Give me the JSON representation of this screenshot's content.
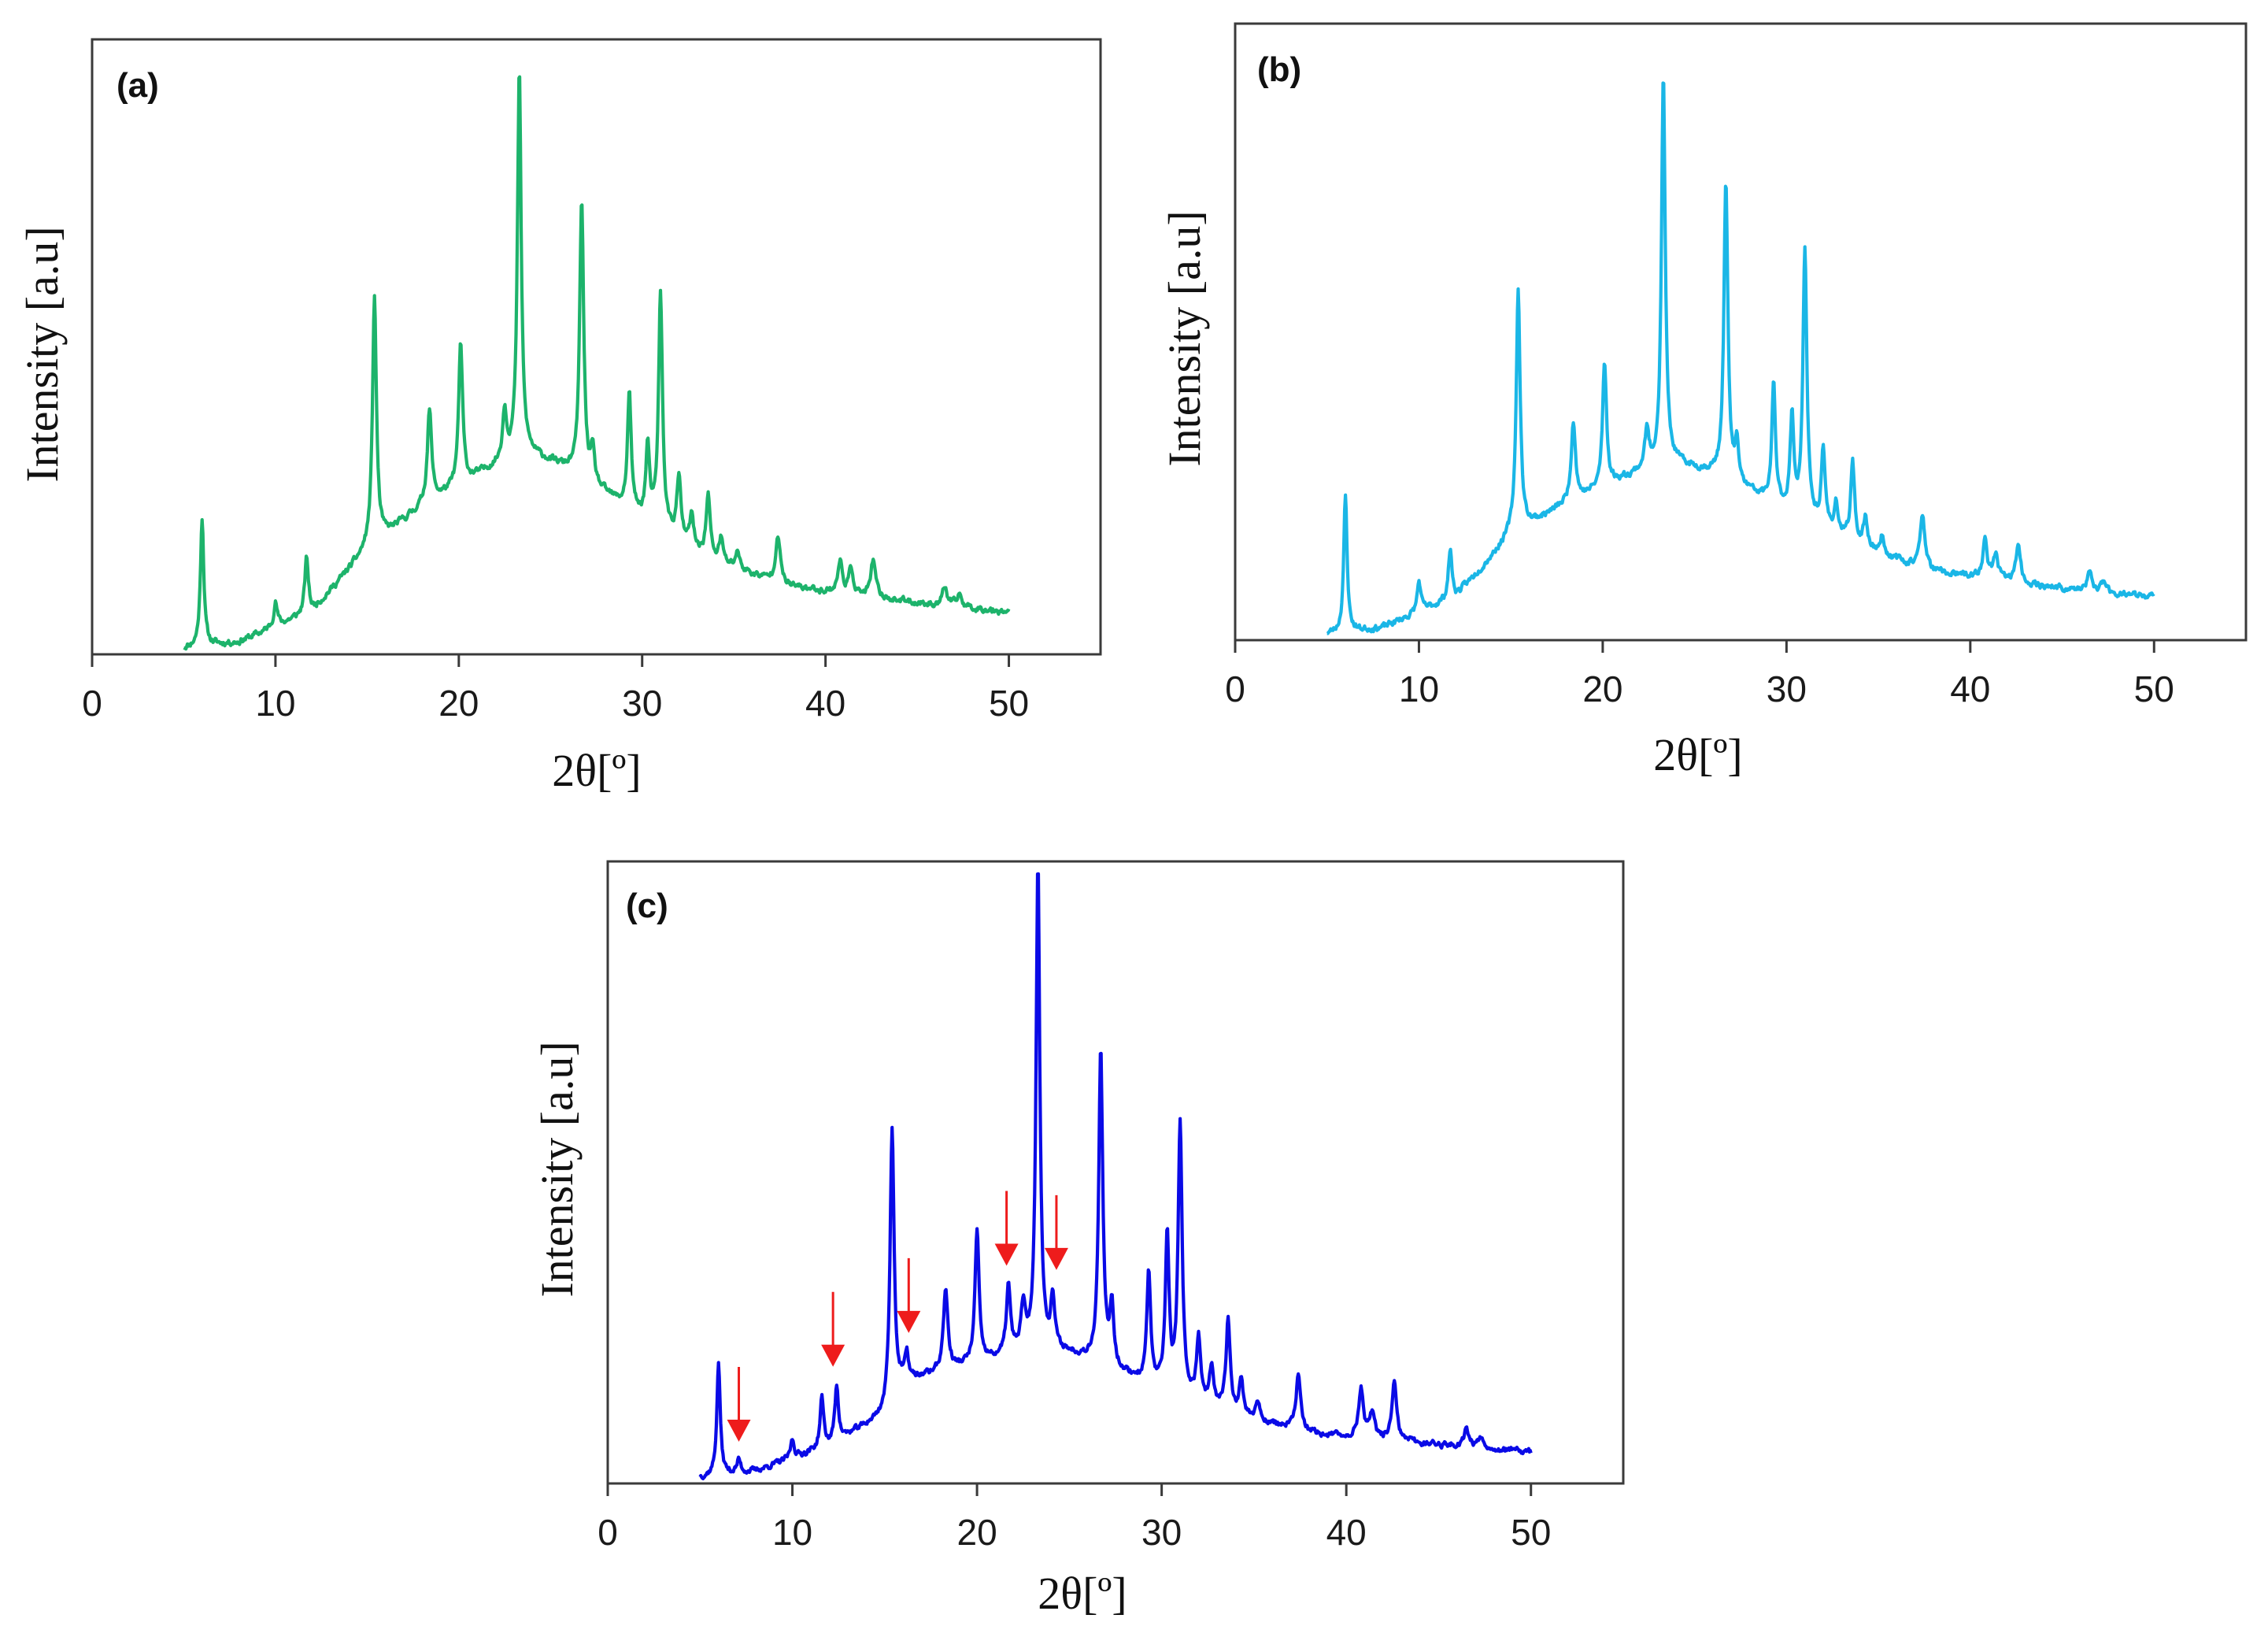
{
  "chart_data": [
    {
      "panel": "(a)",
      "type": "line",
      "color": "#1db36b",
      "xlabel": "2θ[º]",
      "ylabel": "Intensity [a.u]",
      "xlim": [
        0,
        55
      ],
      "ylim": [
        0,
        100
      ],
      "xticks": [
        0,
        10,
        20,
        30,
        40,
        50
      ],
      "background": {
        "points": [
          [
            5,
            1
          ],
          [
            8,
            2
          ],
          [
            12,
            7
          ],
          [
            15,
            17
          ],
          [
            18,
            24
          ],
          [
            21,
            29
          ],
          [
            23.5,
            33
          ],
          [
            26,
            30
          ],
          [
            30,
            22
          ],
          [
            34,
            15
          ],
          [
            38,
            11
          ],
          [
            42,
            9.5
          ],
          [
            46,
            8
          ],
          [
            50,
            7
          ]
        ]
      },
      "peaks": [
        {
          "x": 6.0,
          "h": 21,
          "w": 0.11
        },
        {
          "x": 10.0,
          "h": 4,
          "w": 0.12
        },
        {
          "x": 11.7,
          "h": 9,
          "w": 0.12
        },
        {
          "x": 15.4,
          "h": 40,
          "w": 0.13
        },
        {
          "x": 18.4,
          "h": 15,
          "w": 0.14
        },
        {
          "x": 20.1,
          "h": 23,
          "w": 0.13
        },
        {
          "x": 22.5,
          "h": 8,
          "w": 0.13
        },
        {
          "x": 23.3,
          "h": 62,
          "w": 0.12
        },
        {
          "x": 26.7,
          "h": 45,
          "w": 0.13
        },
        {
          "x": 27.3,
          "h": 5,
          "w": 0.12
        },
        {
          "x": 29.3,
          "h": 19,
          "w": 0.12
        },
        {
          "x": 30.3,
          "h": 12,
          "w": 0.12
        },
        {
          "x": 31.0,
          "h": 38,
          "w": 0.13
        },
        {
          "x": 32.0,
          "h": 10,
          "w": 0.13
        },
        {
          "x": 32.7,
          "h": 5,
          "w": 0.12
        },
        {
          "x": 33.6,
          "h": 10,
          "w": 0.13
        },
        {
          "x": 34.3,
          "h": 4,
          "w": 0.13
        },
        {
          "x": 35.2,
          "h": 3,
          "w": 0.13
        },
        {
          "x": 37.4,
          "h": 8,
          "w": 0.15
        },
        {
          "x": 40.8,
          "h": 5,
          "w": 0.15
        },
        {
          "x": 41.4,
          "h": 4,
          "w": 0.15
        },
        {
          "x": 42.6,
          "h": 6,
          "w": 0.15
        },
        {
          "x": 46.5,
          "h": 3,
          "w": 0.16
        },
        {
          "x": 47.3,
          "h": 2,
          "w": 0.16
        }
      ],
      "noise_amplitude": 1.0
    },
    {
      "panel": "(b)",
      "type": "line",
      "color": "#1ab6e6",
      "xlabel": "2θ[º]",
      "ylabel": "Intensity [a.u]",
      "xlim": [
        0,
        55
      ],
      "ylim": [
        0,
        100
      ],
      "xticks": [
        0,
        10,
        20,
        30,
        40,
        50
      ],
      "background": {
        "points": [
          [
            5,
            1
          ],
          [
            8,
            2
          ],
          [
            12,
            7
          ],
          [
            15,
            17
          ],
          [
            18,
            22
          ],
          [
            21,
            26
          ],
          [
            23.5,
            29
          ],
          [
            26,
            27
          ],
          [
            30,
            21
          ],
          [
            34,
            15
          ],
          [
            38,
            11
          ],
          [
            42,
            9.5
          ],
          [
            46,
            8
          ],
          [
            50,
            7
          ]
        ]
      },
      "peaks": [
        {
          "x": 6.0,
          "h": 22,
          "w": 0.11
        },
        {
          "x": 10.0,
          "h": 5,
          "w": 0.12
        },
        {
          "x": 11.7,
          "h": 8,
          "w": 0.12
        },
        {
          "x": 15.4,
          "h": 39,
          "w": 0.13
        },
        {
          "x": 18.4,
          "h": 13,
          "w": 0.14
        },
        {
          "x": 20.1,
          "h": 20,
          "w": 0.13
        },
        {
          "x": 22.4,
          "h": 6,
          "w": 0.13
        },
        {
          "x": 23.3,
          "h": 63,
          "w": 0.12
        },
        {
          "x": 26.7,
          "h": 48,
          "w": 0.13
        },
        {
          "x": 27.3,
          "h": 6,
          "w": 0.12
        },
        {
          "x": 29.3,
          "h": 19,
          "w": 0.12
        },
        {
          "x": 30.3,
          "h": 15,
          "w": 0.12
        },
        {
          "x": 31.0,
          "h": 43,
          "w": 0.13
        },
        {
          "x": 32.0,
          "h": 12,
          "w": 0.13
        },
        {
          "x": 32.7,
          "h": 5,
          "w": 0.12
        },
        {
          "x": 33.6,
          "h": 13,
          "w": 0.13
        },
        {
          "x": 34.3,
          "h": 5,
          "w": 0.13
        },
        {
          "x": 35.2,
          "h": 3,
          "w": 0.13
        },
        {
          "x": 37.4,
          "h": 9,
          "w": 0.15
        },
        {
          "x": 40.8,
          "h": 6,
          "w": 0.15
        },
        {
          "x": 41.4,
          "h": 4,
          "w": 0.15
        },
        {
          "x": 42.6,
          "h": 6,
          "w": 0.15
        },
        {
          "x": 46.5,
          "h": 3,
          "w": 0.16
        },
        {
          "x": 47.3,
          "h": 2,
          "w": 0.16
        }
      ],
      "noise_amplitude": 1.0
    },
    {
      "panel": "(c)",
      "type": "line",
      "color": "#0a0ae6",
      "xlabel": "2θ[º]",
      "ylabel": "Intensity [a.u]",
      "xlim": [
        0,
        55
      ],
      "ylim": [
        0,
        100
      ],
      "xticks": [
        0,
        10,
        20,
        30,
        40,
        50
      ],
      "background": {
        "points": [
          [
            5,
            1
          ],
          [
            8,
            2
          ],
          [
            12,
            6
          ],
          [
            15,
            11
          ],
          [
            16,
            16
          ],
          [
            18,
            18
          ],
          [
            21,
            20
          ],
          [
            23.5,
            22
          ],
          [
            26,
            20
          ],
          [
            30,
            15
          ],
          [
            34,
            11
          ],
          [
            38,
            8
          ],
          [
            42,
            7
          ],
          [
            46,
            6
          ],
          [
            50,
            5
          ]
        ]
      },
      "peaks": [
        {
          "x": 6.0,
          "h": 18,
          "w": 0.11
        },
        {
          "x": 7.1,
          "h": 2,
          "w": 0.12
        },
        {
          "x": 10.0,
          "h": 3,
          "w": 0.12
        },
        {
          "x": 11.6,
          "h": 8,
          "w": 0.12
        },
        {
          "x": 12.4,
          "h": 9,
          "w": 0.12
        },
        {
          "x": 15.4,
          "h": 44,
          "w": 0.13
        },
        {
          "x": 16.2,
          "h": 4,
          "w": 0.12
        },
        {
          "x": 18.3,
          "h": 13,
          "w": 0.14
        },
        {
          "x": 20.0,
          "h": 21,
          "w": 0.13
        },
        {
          "x": 21.7,
          "h": 11,
          "w": 0.13
        },
        {
          "x": 22.5,
          "h": 7,
          "w": 0.13
        },
        {
          "x": 23.3,
          "h": 78,
          "w": 0.12
        },
        {
          "x": 24.1,
          "h": 8,
          "w": 0.12
        },
        {
          "x": 26.7,
          "h": 50,
          "w": 0.13
        },
        {
          "x": 27.3,
          "h": 10,
          "w": 0.12
        },
        {
          "x": 29.3,
          "h": 18,
          "w": 0.12
        },
        {
          "x": 30.3,
          "h": 25,
          "w": 0.12
        },
        {
          "x": 31.0,
          "h": 43,
          "w": 0.13
        },
        {
          "x": 32.0,
          "h": 10,
          "w": 0.13
        },
        {
          "x": 32.7,
          "h": 6,
          "w": 0.12
        },
        {
          "x": 33.6,
          "h": 15,
          "w": 0.13
        },
        {
          "x": 34.3,
          "h": 6,
          "w": 0.13
        },
        {
          "x": 35.2,
          "h": 3,
          "w": 0.13
        },
        {
          "x": 37.4,
          "h": 9,
          "w": 0.15
        },
        {
          "x": 40.8,
          "h": 8,
          "w": 0.15
        },
        {
          "x": 41.4,
          "h": 4,
          "w": 0.15
        },
        {
          "x": 42.6,
          "h": 9,
          "w": 0.15
        },
        {
          "x": 46.5,
          "h": 3,
          "w": 0.16
        },
        {
          "x": 47.3,
          "h": 2,
          "w": 0.16
        }
      ],
      "noise_amplitude": 0.9,
      "annotations": [
        {
          "type": "arrow",
          "x": 7.1,
          "color": "#ee1c1c"
        },
        {
          "type": "arrow",
          "x": 12.2,
          "color": "#ee1c1c"
        },
        {
          "type": "arrow",
          "x": 16.3,
          "color": "#ee1c1c"
        },
        {
          "type": "arrow",
          "x": 21.6,
          "color": "#ee1c1c"
        },
        {
          "type": "arrow",
          "x": 24.3,
          "color": "#ee1c1c"
        }
      ]
    }
  ]
}
